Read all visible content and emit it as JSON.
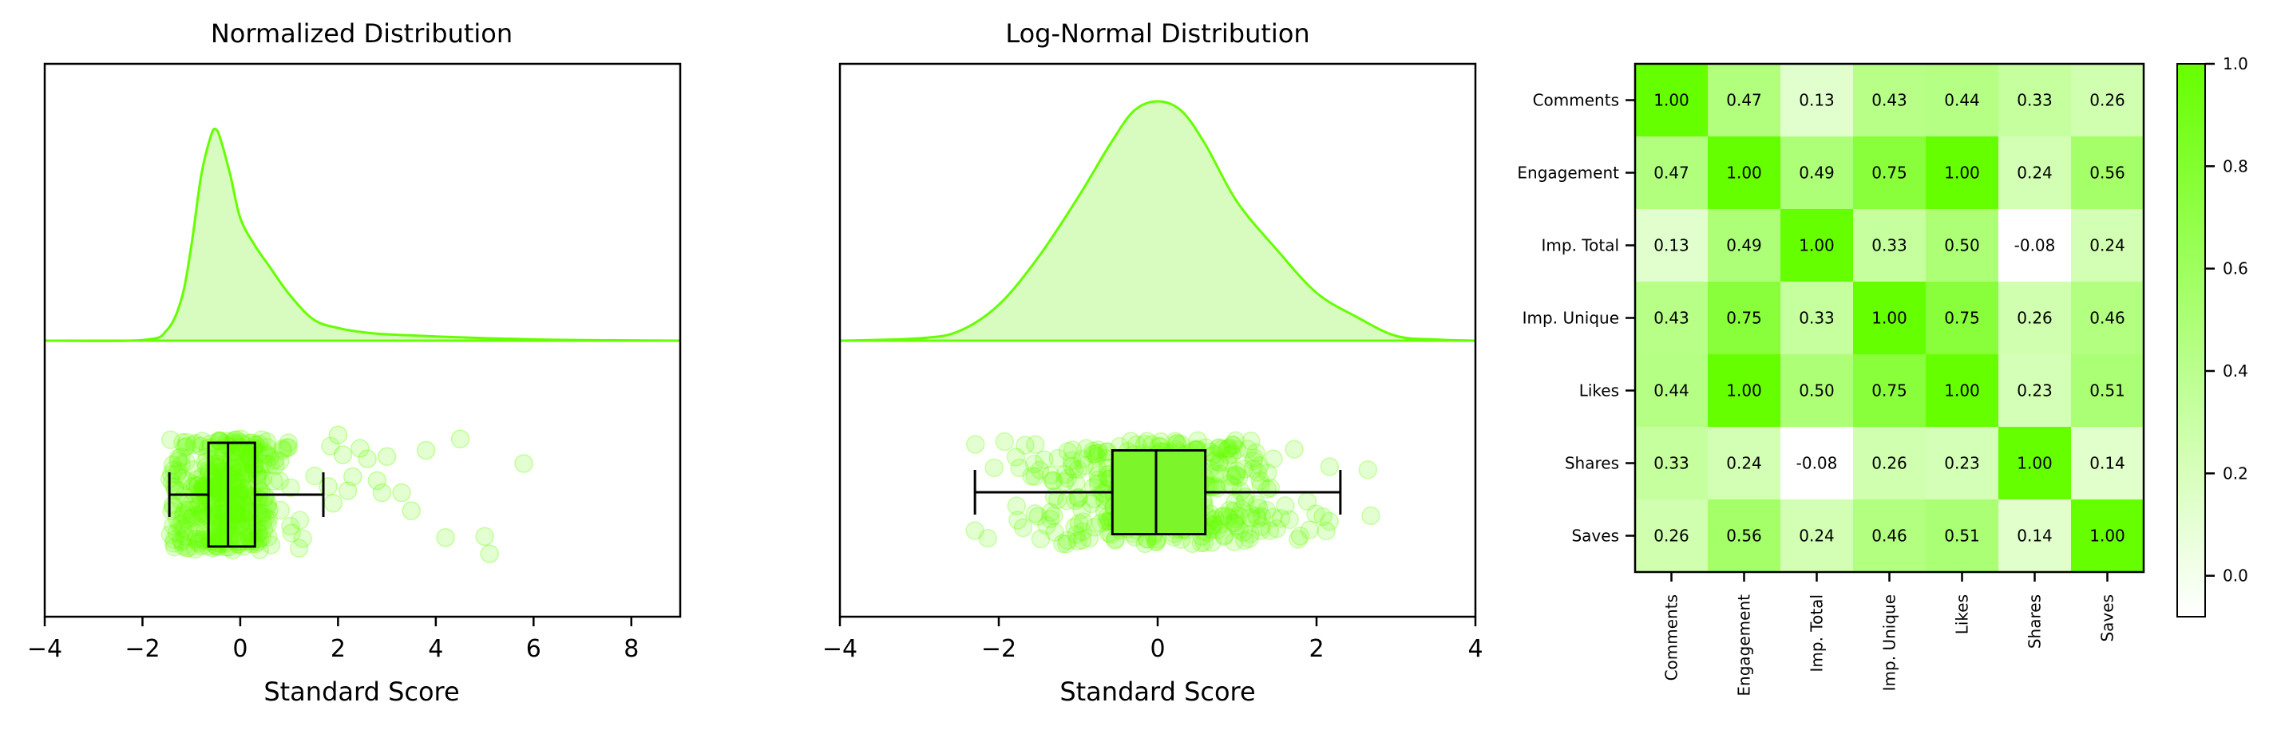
{
  "colors": {
    "accent": "#66ff00",
    "fill_light": "#d8fcc0",
    "box_fill": "#7cf52a",
    "axis": "#000000",
    "background": "#ffffff"
  },
  "chart_data": [
    {
      "type": "raincloud",
      "title": "Normalized Distribution",
      "xlabel": "Standard Score",
      "xlim": [
        -4,
        9
      ],
      "xticks": [
        -4,
        -2,
        0,
        2,
        4,
        6,
        8
      ],
      "kde": {
        "x": [
          -4,
          -2,
          -1.5,
          -1.2,
          -1,
          -0.8,
          -0.6,
          -0.5,
          -0.4,
          -0.2,
          0,
          0.3,
          0.6,
          1,
          1.5,
          2,
          2.5,
          3,
          4,
          5,
          6,
          7,
          9
        ],
        "density": [
          0,
          0.003,
          0.05,
          0.2,
          0.45,
          0.78,
          0.97,
          1.0,
          0.95,
          0.78,
          0.58,
          0.45,
          0.35,
          0.22,
          0.1,
          0.06,
          0.04,
          0.03,
          0.02,
          0.012,
          0.006,
          0.003,
          0
        ]
      },
      "box": {
        "whisker_low": -1.45,
        "q1": -0.65,
        "median": -0.25,
        "q3": 0.3,
        "whisker_high": 1.7
      },
      "outliers": [
        1.8,
        1.9,
        2.0,
        2.1,
        2.2,
        2.3,
        2.45,
        2.6,
        2.8,
        2.9,
        3.0,
        3.3,
        3.5,
        3.8,
        4.2,
        4.5,
        5.0,
        5.1,
        5.8
      ]
    },
    {
      "type": "raincloud",
      "title": "Log-Normal Distribution",
      "xlabel": "Standard Score",
      "xlim": [
        -4,
        4
      ],
      "xticks": [
        -4,
        -2,
        0,
        2,
        4
      ],
      "kde": {
        "x": [
          -4,
          -3,
          -2.5,
          -2,
          -1.5,
          -1,
          -0.6,
          -0.3,
          0,
          0.3,
          0.6,
          1,
          1.5,
          2,
          2.5,
          3,
          3.5,
          4
        ],
        "density": [
          0,
          0.01,
          0.04,
          0.15,
          0.35,
          0.6,
          0.82,
          0.96,
          1.0,
          0.96,
          0.82,
          0.58,
          0.38,
          0.2,
          0.1,
          0.02,
          0.005,
          0
        ]
      },
      "box": {
        "whisker_low": -2.3,
        "q1": -0.57,
        "median": -0.02,
        "q3": 0.6,
        "whisker_high": 2.3
      },
      "outliers": []
    },
    {
      "type": "heatmap",
      "labels": [
        "Comments",
        "Engagement",
        "Imp. Total",
        "Imp. Unique",
        "Likes",
        "Shares",
        "Saves"
      ],
      "matrix": [
        [
          "1.00",
          "0.47",
          "0.13",
          "0.43",
          "0.44",
          "0.33",
          "0.26"
        ],
        [
          "0.47",
          "1.00",
          "0.49",
          "0.75",
          "1.00",
          "0.24",
          "0.56"
        ],
        [
          "0.13",
          "0.49",
          "1.00",
          "0.33",
          "0.50",
          "-0.08",
          "0.24"
        ],
        [
          "0.43",
          "0.75",
          "0.33",
          "1.00",
          "0.75",
          "0.26",
          "0.46"
        ],
        [
          "0.44",
          "1.00",
          "0.50",
          "0.75",
          "1.00",
          "0.23",
          "0.51"
        ],
        [
          "0.33",
          "0.24",
          "-0.08",
          "0.26",
          "0.23",
          "1.00",
          "0.14"
        ],
        [
          "0.26",
          "0.56",
          "0.24",
          "0.46",
          "0.51",
          "0.14",
          "1.00"
        ]
      ],
      "colorbar": {
        "vmin": -0.08,
        "vmax": 1.0,
        "ticks": [
          "0.0",
          "0.2",
          "0.4",
          "0.6",
          "0.8",
          "1.0"
        ]
      }
    }
  ]
}
